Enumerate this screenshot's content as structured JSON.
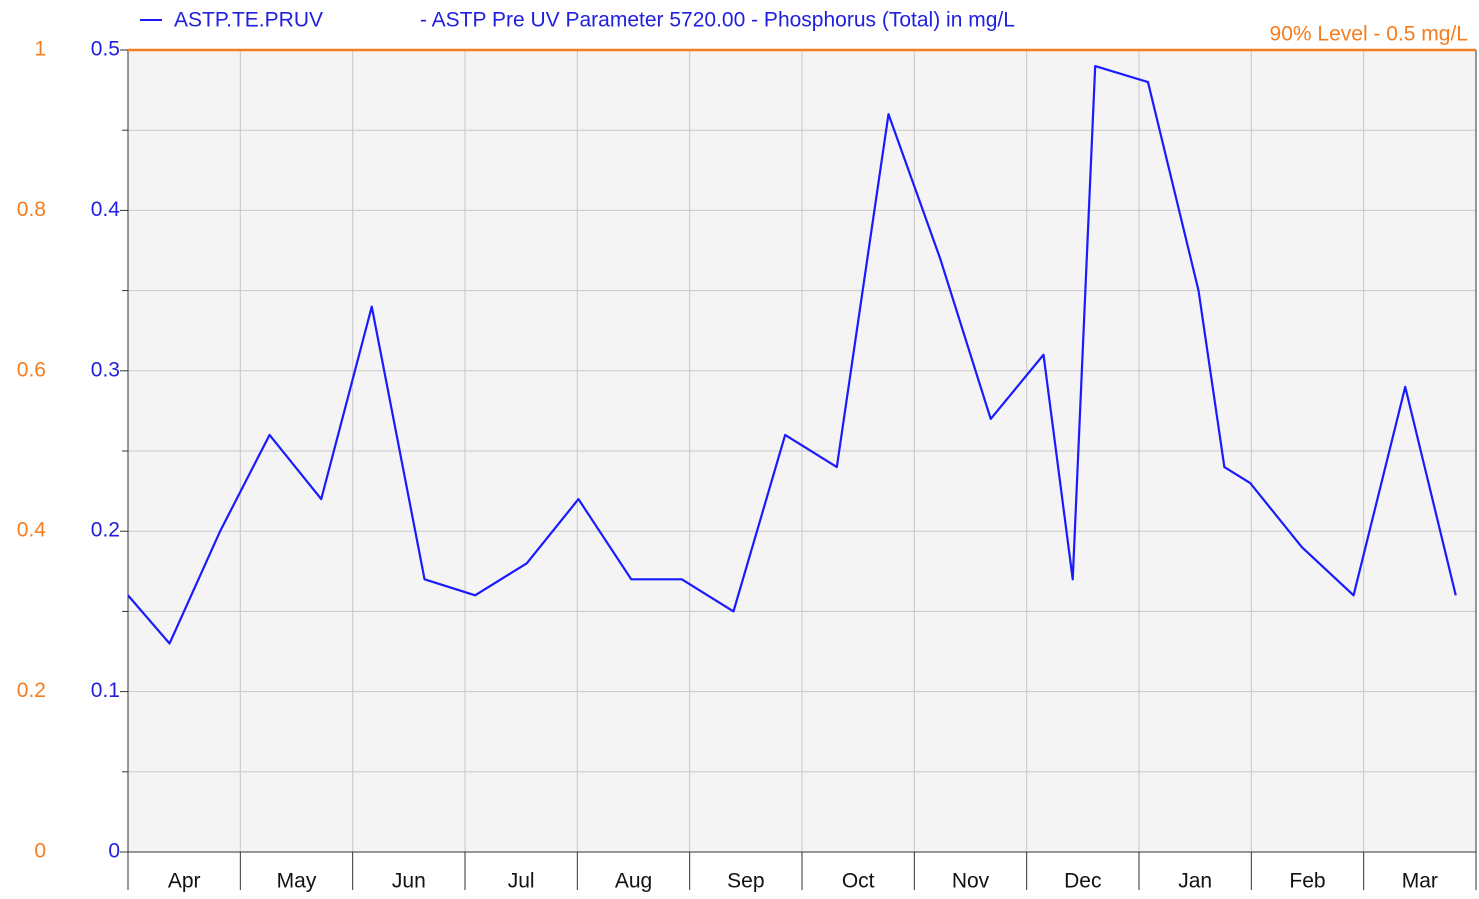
{
  "chart_data": {
    "type": "line",
    "title": "- ASTP Pre UV Parameter 5720.00 - Phosphorus (Total) in mg/L",
    "categories": [
      "Apr",
      "May",
      "Jun",
      "Jul",
      "Aug",
      "Sep",
      "Oct",
      "Nov",
      "Dec",
      "Jan",
      "Feb",
      "Mar"
    ],
    "xlim": [
      0,
      12
    ],
    "x": [
      0,
      0.37,
      0.82,
      1.26,
      1.72,
      2.17,
      2.64,
      3.09,
      3.55,
      4.01,
      4.48,
      4.93,
      5.39,
      5.85,
      6.31,
      6.77,
      7.23,
      7.68,
      8.15,
      8.41,
      8.61,
      9.08,
      9.53,
      9.76,
      9.99,
      10.45,
      10.91,
      11.37,
      11.82
    ],
    "series": [
      {
        "name": "ASTP.TE.PRUV",
        "color": "#1a1aff",
        "values": [
          0.16,
          0.13,
          0.2,
          0.26,
          0.22,
          0.34,
          0.17,
          0.16,
          0.18,
          0.22,
          0.17,
          0.17,
          0.15,
          0.26,
          0.24,
          0.46,
          0.37,
          0.27,
          0.31,
          0.17,
          0.49,
          0.48,
          0.35,
          0.24,
          0.23,
          0.19,
          0.16,
          0.29,
          0.16
        ]
      }
    ],
    "ylim": [
      0,
      0.5
    ],
    "yticks": [
      0,
      0.1,
      0.2,
      0.3,
      0.4,
      0.5
    ],
    "yminorticks": [
      0.05,
      0.15,
      0.25,
      0.35,
      0.45
    ],
    "y2lim": [
      0,
      1
    ],
    "y2ticks": [
      0,
      0.2,
      0.4,
      0.6,
      0.8,
      1
    ],
    "threshold": {
      "value": 0.5,
      "label": "90% Level - 0.5 mg/L",
      "color": "#f47d20"
    },
    "grid": true
  }
}
